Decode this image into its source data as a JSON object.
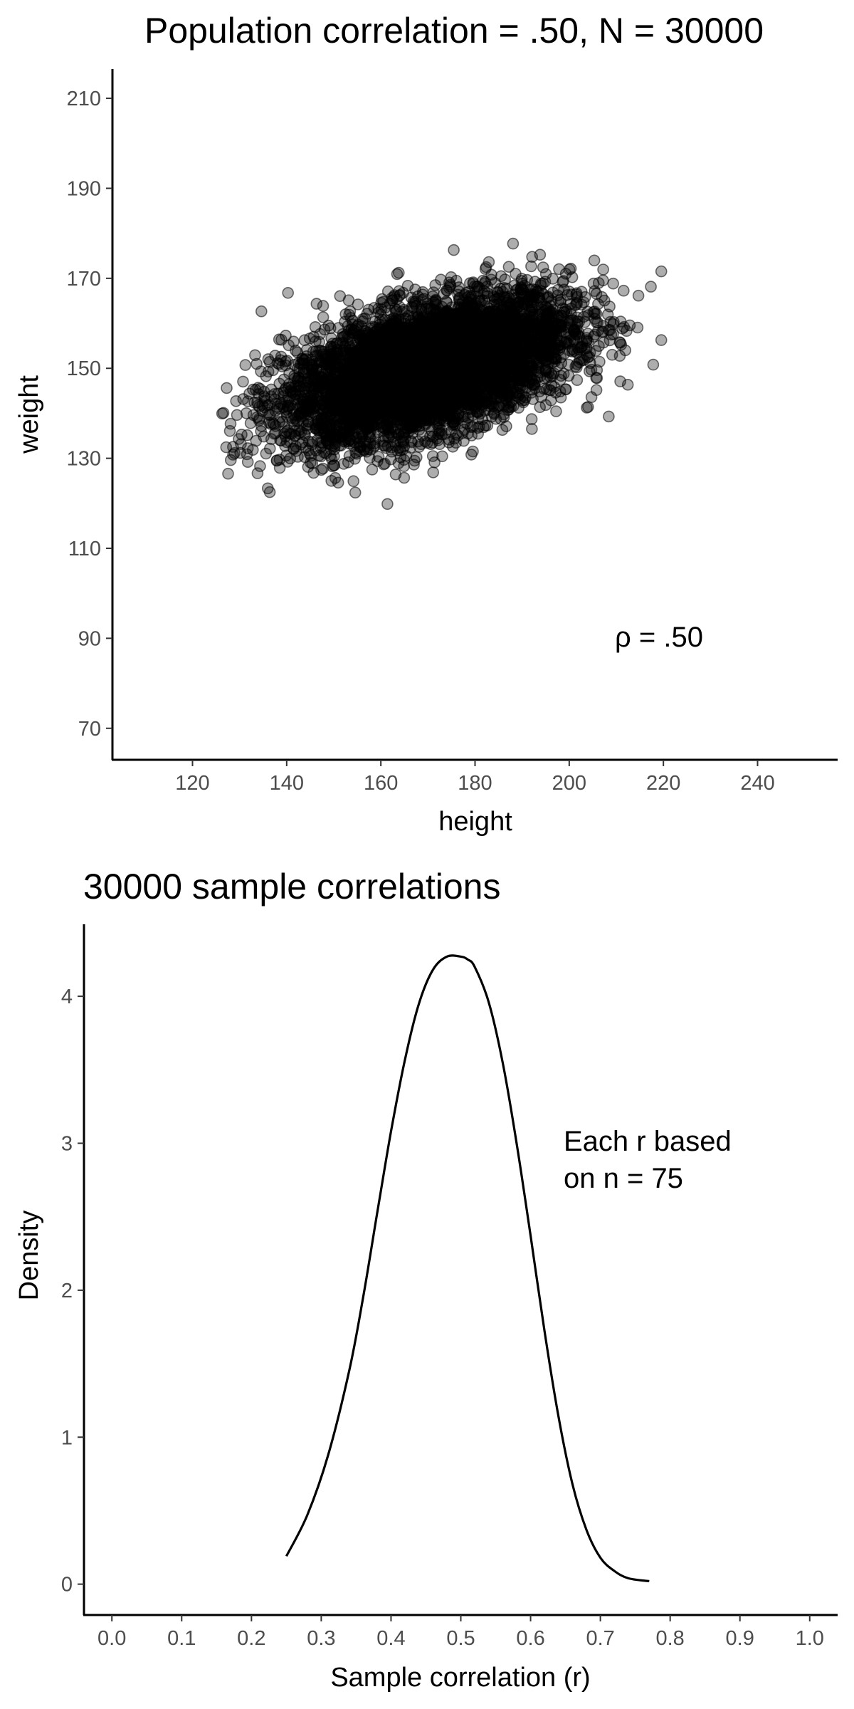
{
  "chart_data": [
    {
      "type": "scatter",
      "title": "Population correlation = .50, N = 30000",
      "xlabel": "height",
      "ylabel": "weight",
      "xlim": [
        103,
        257
      ],
      "ylim": [
        63,
        216.5
      ],
      "xticks": [
        120,
        140,
        160,
        180,
        200,
        220,
        240
      ],
      "yticks": [
        70,
        90,
        110,
        130,
        150,
        170,
        190,
        210
      ],
      "annotation": "ρ = .50",
      "grid": false,
      "population": {
        "n": 30000,
        "x_mean": 170,
        "x_sd": 15,
        "y_mean": 150,
        "y_sd": 8,
        "rho": 0.5,
        "x_range": [
          126,
          223
        ],
        "y_range": [
          116,
          180
        ]
      }
    },
    {
      "type": "line",
      "title": "30000 sample correlations",
      "xlabel": "Sample correlation (r)",
      "ylabel": "Density",
      "xlim": [
        -0.04,
        1.04
      ],
      "ylim": [
        -0.21,
        4.49
      ],
      "xticks": [
        "0.0",
        "0.1",
        "0.2",
        "0.3",
        "0.4",
        "0.5",
        "0.6",
        "0.7",
        "0.8",
        "0.9",
        "1.0"
      ],
      "yticks": [
        "0",
        "1",
        "2",
        "3",
        "4"
      ],
      "annotation": [
        "Each r based",
        "on n = 75"
      ],
      "grid": false,
      "series": [
        {
          "x": [
            0.25,
            0.28,
            0.31,
            0.34,
            0.36,
            0.38,
            0.4,
            0.42,
            0.44,
            0.46,
            0.48,
            0.5,
            0.51,
            0.52,
            0.54,
            0.56,
            0.58,
            0.6,
            0.62,
            0.64,
            0.66,
            0.68,
            0.7,
            0.72,
            0.74,
            0.77
          ],
          "y": [
            0.19,
            0.47,
            0.88,
            1.45,
            1.95,
            2.52,
            3.08,
            3.57,
            3.95,
            4.18,
            4.27,
            4.27,
            4.25,
            4.2,
            3.96,
            3.55,
            3.0,
            2.37,
            1.72,
            1.14,
            0.68,
            0.37,
            0.18,
            0.09,
            0.04,
            0.02
          ]
        }
      ]
    }
  ]
}
